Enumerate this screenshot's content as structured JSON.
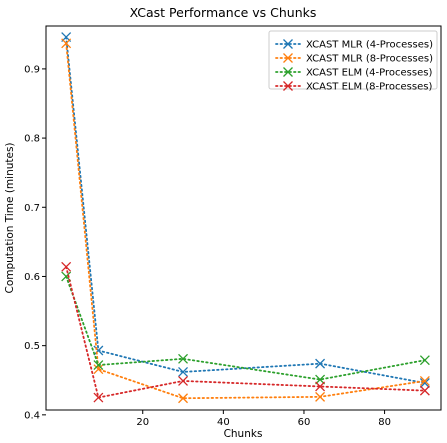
{
  "chart_data": {
    "type": "line",
    "title": "XCast Performance vs Chunks",
    "xlabel": "Chunks",
    "ylabel": "Computation Time (minutes)",
    "xlim": [
      -4,
      94
    ],
    "ylim": [
      0.407,
      0.962
    ],
    "xticks": [
      20,
      40,
      60,
      80
    ],
    "yticks": [
      0.4,
      0.5,
      0.6,
      0.7,
      0.8,
      0.9
    ],
    "xtick_labels": [
      "20",
      "40",
      "60",
      "80"
    ],
    "ytick_labels": [
      "0.4",
      "0.5",
      "0.6",
      "0.7",
      "0.8",
      "0.9"
    ],
    "x": [
      1,
      9,
      30,
      64,
      90
    ],
    "grid": false,
    "legend_position": "top-right",
    "series": [
      {
        "name": "XCAST MLR (4-Processes)",
        "color": "#1f77b4",
        "values": [
          0.946,
          0.493,
          0.462,
          0.474,
          0.446
        ]
      },
      {
        "name": "XCAST MLR (8-Processes)",
        "color": "#ff7f0e",
        "values": [
          0.937,
          0.466,
          0.424,
          0.426,
          0.449
        ]
      },
      {
        "name": "XCAST ELM (4-Processes)",
        "color": "#2ca02c",
        "values": [
          0.6,
          0.472,
          0.481,
          0.451,
          0.479
        ]
      },
      {
        "name": "XCAST ELM (8-Processes)",
        "color": "#d62728",
        "values": [
          0.614,
          0.425,
          0.449,
          0.441,
          0.435
        ]
      }
    ]
  }
}
